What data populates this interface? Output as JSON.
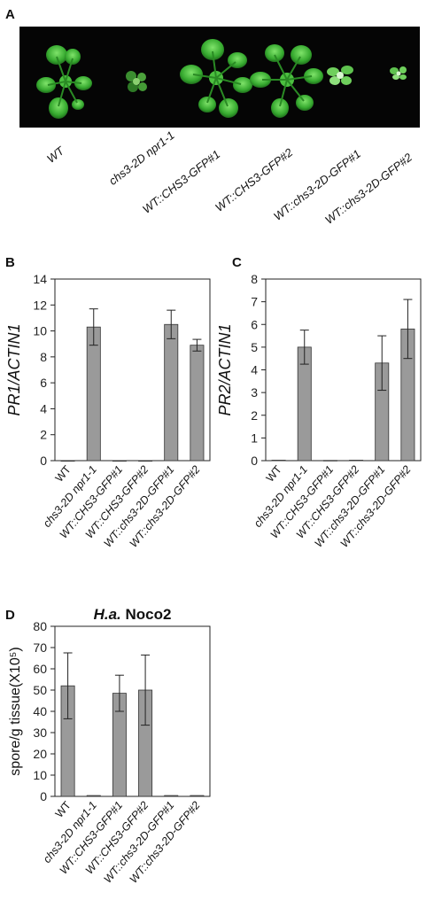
{
  "panels": {
    "a": "A",
    "b": "B",
    "c": "C",
    "d": "D"
  },
  "photo_labels": [
    "WT",
    "chs3-2D npr1-1",
    "WT::CHS3-GFP#1",
    "WT::CHS3-GFP#2",
    "WT::chs3-2D-GFP#1",
    "WT::chs3-2D-GFP#2"
  ],
  "colors": {
    "bar": "#9a9a9a",
    "photo_bg": "#050505",
    "plant": "#3fb23a"
  },
  "chart_data": [
    {
      "type": "bar",
      "panel": "B",
      "ylabel": "PR1/ACTIN1",
      "ylabel_italic": true,
      "title": "",
      "ylim": [
        0,
        14
      ],
      "yticks": [
        0,
        2,
        4,
        6,
        8,
        10,
        12,
        14
      ],
      "categories": [
        "WT",
        "chs3-2D npr1-1",
        "WT::CHS3-GFP#1",
        "WT::CHS3-GFP#2",
        "WT::chs3-2D-GFP#1",
        "WT::chs3-2D-GFP#2"
      ],
      "values": [
        0,
        10.3,
        0,
        0,
        10.5,
        8.9
      ],
      "errors": [
        0,
        1.4,
        0,
        0,
        1.1,
        0.45
      ],
      "grid": false
    },
    {
      "type": "bar",
      "panel": "C",
      "ylabel": "PR2/ACTIN1",
      "ylabel_italic": true,
      "title": "",
      "ylim": [
        0,
        8
      ],
      "yticks": [
        0,
        1,
        2,
        3,
        4,
        5,
        6,
        7,
        8
      ],
      "categories": [
        "WT",
        "chs3-2D npr1-1",
        "WT::CHS3-GFP#1",
        "WT::CHS3-GFP#2",
        "WT::chs3-2D-GFP#1",
        "WT::chs3-2D-GFP#2"
      ],
      "values": [
        0.02,
        5.0,
        0.01,
        0.02,
        4.3,
        5.8
      ],
      "errors": [
        0,
        0.75,
        0,
        0,
        1.2,
        1.3
      ],
      "grid": false
    },
    {
      "type": "bar",
      "panel": "D",
      "ylabel": "spore/g tissue(X10⁵)",
      "ylabel_italic": false,
      "title_italic": "H.a.",
      "title_rest": " Noco2",
      "ylim": [
        0,
        80
      ],
      "yticks": [
        0,
        10,
        20,
        30,
        40,
        50,
        60,
        70,
        80
      ],
      "categories": [
        "WT",
        "chs3-2D npr1-1",
        "WT::CHS3-GFP#1",
        "WT::CHS3-GFP#2",
        "WT::chs3-2D-GFP#1",
        "WT::chs3-2D-GFP#2"
      ],
      "values": [
        52,
        0.4,
        48.5,
        50,
        0.4,
        0.4
      ],
      "errors": [
        15.5,
        0,
        8.5,
        16.5,
        0,
        0
      ],
      "grid": false
    }
  ]
}
